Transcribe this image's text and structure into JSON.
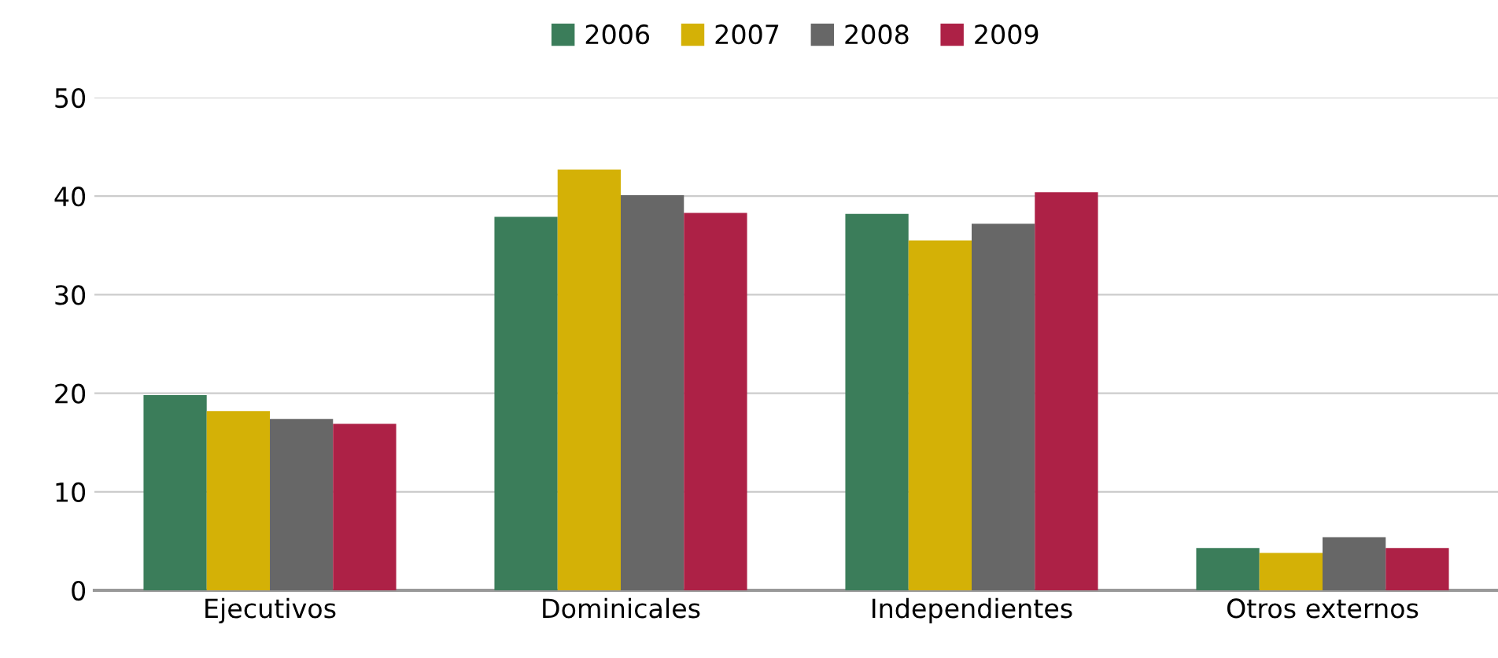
{
  "chart_data": {
    "type": "bar",
    "categories": [
      "Ejecutivos",
      "Dominicales",
      "Independientes",
      "Otros externos"
    ],
    "series": [
      {
        "name": "2006",
        "color": "#3b7d5a",
        "values": [
          19.8,
          37.9,
          38.2,
          4.3
        ]
      },
      {
        "name": "2007",
        "color": "#d4b106",
        "values": [
          18.2,
          42.7,
          35.5,
          3.8
        ]
      },
      {
        "name": "2008",
        "color": "#676767",
        "values": [
          17.4,
          40.1,
          37.2,
          5.4
        ]
      },
      {
        "name": "2009",
        "color": "#ad2146",
        "values": [
          16.9,
          38.3,
          40.4,
          4.3
        ]
      }
    ],
    "ylim": [
      0,
      50
    ],
    "yticks": [
      0,
      10,
      20,
      30,
      40,
      50
    ],
    "grid": "y",
    "legend": "top"
  }
}
